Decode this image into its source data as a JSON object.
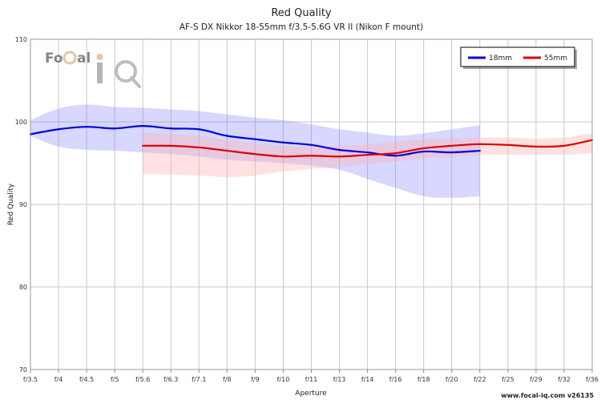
{
  "chart_data": {
    "type": "line",
    "title": "Red Quality",
    "subtitle": "AF-S DX Nikkor 18-55mm f/3.5-5.6G VR II (Nikon F mount)",
    "xlabel": "Aperture",
    "ylabel": "Red Quality",
    "ylim": [
      70,
      110
    ],
    "yticks": [
      70,
      80,
      90,
      100,
      110
    ],
    "categories": [
      "f/3.5",
      "f/4",
      "f/4.5",
      "f/5",
      "f/5.6",
      "f/6.3",
      "f/7.1",
      "f/8",
      "f/9",
      "f/10",
      "f/11",
      "f/13",
      "f/14",
      "f/16",
      "f/18",
      "f/20",
      "f/22",
      "f/25",
      "f/29",
      "f/32",
      "f/36"
    ],
    "grid": true,
    "legend_position": "top-right",
    "series": [
      {
        "name": "18mm",
        "color": "#0000dd",
        "band_color": "#6f6fff",
        "x": [
          0,
          1,
          2,
          3,
          4,
          5,
          6,
          7,
          8,
          9,
          10,
          11,
          12,
          13,
          14,
          15,
          16
        ],
        "values": [
          98.5,
          99.1,
          99.4,
          99.2,
          99.5,
          99.2,
          99.1,
          98.3,
          97.9,
          97.5,
          97.2,
          96.6,
          96.3,
          95.9,
          96.4,
          96.3,
          96.5
        ],
        "upper": [
          100.2,
          101.6,
          102.1,
          101.8,
          101.7,
          101.5,
          101.3,
          100.9,
          100.5,
          100.2,
          99.7,
          99.1,
          98.7,
          98.3,
          98.6,
          99.1,
          99.6
        ],
        "lower": [
          98.3,
          97.0,
          96.6,
          96.5,
          96.3,
          96.1,
          95.8,
          95.4,
          95.2,
          95.0,
          94.7,
          94.2,
          93.1,
          92.0,
          91.0,
          90.8,
          91.0
        ]
      },
      {
        "name": "55mm",
        "color": "#dd0000",
        "band_color": "#ffb0b0",
        "x": [
          4,
          5,
          6,
          7,
          8,
          9,
          10,
          11,
          12,
          13,
          14,
          15,
          16,
          17,
          18,
          19,
          20
        ],
        "values": [
          97.1,
          97.1,
          96.9,
          96.5,
          96.1,
          95.8,
          95.9,
          95.8,
          96.0,
          96.2,
          96.8,
          97.1,
          97.3,
          97.2,
          97.0,
          97.1,
          97.8
        ],
        "upper": [
          98.7,
          98.5,
          98.3,
          97.8,
          97.4,
          97.1,
          97.0,
          97.1,
          97.3,
          97.6,
          97.9,
          98.0,
          98.1,
          98.1,
          98.0,
          98.1,
          98.6
        ],
        "lower": [
          93.7,
          93.6,
          93.5,
          93.3,
          93.5,
          94.0,
          94.3,
          94.5,
          94.9,
          95.2,
          95.6,
          95.8,
          96.0,
          96.0,
          96.0,
          96.0,
          96.2
        ]
      }
    ]
  },
  "logo": {
    "brand": "Focal iQ"
  },
  "footer": {
    "text": "www.focal-iq.com v26135"
  }
}
